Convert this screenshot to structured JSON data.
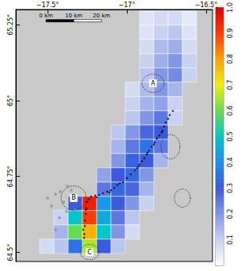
{
  "chart_data": {
    "type": "heatmap_map",
    "xlim": [
      -17.7,
      -16.46
    ],
    "ylim": [
      64.47,
      65.3
    ],
    "xticks": [
      {
        "value": -17.5,
        "label": "−17.5°"
      },
      {
        "value": -17,
        "label": "−17°"
      },
      {
        "value": -16.5,
        "label": "−16.5°"
      }
    ],
    "yticks": [
      {
        "value": 64.5,
        "label": "64.5°"
      },
      {
        "value": 64.75,
        "label": "64.75°"
      },
      {
        "value": 65,
        "label": "65°"
      },
      {
        "value": 65.25,
        "label": "65.25°"
      }
    ],
    "cell_size": [
      0.09,
      0.047
    ],
    "cells": [
      [
        -16.875,
        65.272,
        0.06
      ],
      [
        -16.785,
        65.272,
        0.08
      ],
      [
        -16.695,
        65.272,
        0.08
      ],
      [
        -16.605,
        65.272,
        0.05
      ],
      [
        -16.875,
        65.225,
        0.06
      ],
      [
        -16.785,
        65.225,
        0.1
      ],
      [
        -16.695,
        65.225,
        0.12
      ],
      [
        -16.605,
        65.225,
        0.06
      ],
      [
        -16.875,
        65.178,
        0.08
      ],
      [
        -16.785,
        65.178,
        0.14
      ],
      [
        -16.695,
        65.178,
        0.16
      ],
      [
        -16.605,
        65.178,
        0.08
      ],
      [
        -16.875,
        65.131,
        0.1
      ],
      [
        -16.785,
        65.131,
        0.16
      ],
      [
        -16.695,
        65.131,
        0.2
      ],
      [
        -16.605,
        65.131,
        0.1
      ],
      [
        -16.875,
        65.084,
        0.12
      ],
      [
        -16.785,
        65.084,
        0.2
      ],
      [
        -16.695,
        65.084,
        0.22
      ],
      [
        -16.605,
        65.084,
        0.1
      ],
      [
        -16.965,
        65.037,
        0.08
      ],
      [
        -16.875,
        65.037,
        0.14
      ],
      [
        -16.785,
        65.037,
        0.2
      ],
      [
        -16.695,
        65.037,
        0.15
      ],
      [
        -16.965,
        64.99,
        0.1
      ],
      [
        -16.875,
        64.99,
        0.15
      ],
      [
        -16.785,
        64.99,
        0.18
      ],
      [
        -16.695,
        64.99,
        0.1
      ],
      [
        -16.965,
        64.943,
        0.12
      ],
      [
        -16.875,
        64.943,
        0.2
      ],
      [
        -16.785,
        64.943,
        0.25
      ],
      [
        -16.695,
        64.943,
        0.1
      ],
      [
        -17.055,
        64.896,
        0.12
      ],
      [
        -16.965,
        64.896,
        0.2
      ],
      [
        -16.875,
        64.896,
        0.28
      ],
      [
        -16.785,
        64.896,
        0.3
      ],
      [
        -17.055,
        64.849,
        0.15
      ],
      [
        -16.965,
        64.849,
        0.25
      ],
      [
        -16.875,
        64.849,
        0.35
      ],
      [
        -16.785,
        64.849,
        0.25
      ],
      [
        -17.055,
        64.802,
        0.2
      ],
      [
        -16.965,
        64.802,
        0.32
      ],
      [
        -16.875,
        64.802,
        0.3
      ],
      [
        -16.785,
        64.802,
        0.15
      ],
      [
        -17.145,
        64.755,
        0.18
      ],
      [
        -17.055,
        64.755,
        0.3
      ],
      [
        -16.965,
        64.755,
        0.33
      ],
      [
        -16.875,
        64.755,
        0.2
      ],
      [
        -17.145,
        64.708,
        0.25
      ],
      [
        -17.055,
        64.708,
        0.33
      ],
      [
        -16.965,
        64.708,
        0.28
      ],
      [
        -16.875,
        64.708,
        0.15
      ],
      [
        -17.325,
        64.661,
        0.3
      ],
      [
        -17.235,
        64.661,
        0.95
      ],
      [
        -17.145,
        64.661,
        0.42
      ],
      [
        -17.055,
        64.661,
        0.3
      ],
      [
        -16.965,
        64.661,
        0.2
      ],
      [
        -16.875,
        64.661,
        0.1
      ],
      [
        -17.415,
        64.614,
        0.1
      ],
      [
        -17.325,
        64.614,
        0.5
      ],
      [
        -17.235,
        64.614,
        0.9
      ],
      [
        -17.145,
        64.614,
        0.45
      ],
      [
        -17.055,
        64.614,
        0.25
      ],
      [
        -16.965,
        64.614,
        0.12
      ],
      [
        -17.415,
        64.567,
        0.15
      ],
      [
        -17.325,
        64.567,
        0.6
      ],
      [
        -17.235,
        64.567,
        0.78
      ],
      [
        -17.145,
        64.567,
        0.5
      ],
      [
        -17.055,
        64.567,
        0.2
      ],
      [
        -16.965,
        64.567,
        0.08
      ],
      [
        -17.505,
        64.52,
        0.08
      ],
      [
        -17.415,
        64.52,
        0.12
      ],
      [
        -17.325,
        64.52,
        0.35
      ],
      [
        -17.235,
        64.52,
        0.65
      ],
      [
        -17.145,
        64.52,
        0.3
      ],
      [
        -17.055,
        64.52,
        0.12
      ]
    ],
    "colorbar": {
      "range": [
        0,
        1
      ],
      "ticks": [
        0.1,
        0.2,
        0.3,
        0.4,
        0.5,
        0.6,
        0.7,
        0.8,
        0.9,
        {
          "value": 1,
          "label": "1.0"
        }
      ]
    },
    "earthquakes": {
      "color": "#000000",
      "points": [
        [
          -17.27,
          64.548
        ],
        [
          -17.268,
          64.56
        ],
        [
          -17.265,
          64.587
        ],
        [
          -17.262,
          64.605
        ],
        [
          -17.26,
          64.627
        ],
        [
          -17.255,
          64.645
        ],
        [
          -17.25,
          64.666
        ],
        [
          -17.24,
          64.675
        ],
        [
          -17.225,
          64.684
        ],
        [
          -17.2,
          64.687
        ],
        [
          -17.175,
          64.689
        ],
        [
          -17.15,
          64.695
        ],
        [
          -17.125,
          64.7
        ],
        [
          -17.1,
          64.705
        ],
        [
          -17.08,
          64.712
        ],
        [
          -17.06,
          64.722
        ],
        [
          -17.045,
          64.727
        ],
        [
          -17.025,
          64.731
        ],
        [
          -17.0,
          64.745
        ],
        [
          -16.975,
          64.757
        ],
        [
          -16.95,
          64.77
        ],
        [
          -16.935,
          64.778
        ],
        [
          -16.925,
          64.783
        ],
        [
          -16.905,
          64.8
        ],
        [
          -16.89,
          64.81
        ],
        [
          -16.875,
          64.822
        ],
        [
          -16.86,
          64.835
        ],
        [
          -16.845,
          64.848
        ],
        [
          -16.825,
          64.862
        ],
        [
          -16.81,
          64.875
        ],
        [
          -16.795,
          64.885
        ],
        [
          -16.775,
          64.901
        ],
        [
          -16.765,
          64.915
        ],
        [
          -16.755,
          64.928
        ],
        [
          -16.74,
          64.94
        ],
        [
          -16.73,
          64.952
        ],
        [
          -16.71,
          64.966
        ],
        [
          -16.92,
          64.79
        ],
        [
          -16.87,
          64.828
        ],
        [
          -16.83,
          64.855
        ],
        [
          -16.78,
          64.895
        ],
        [
          -17.11,
          64.698
        ],
        [
          -17.19,
          64.682
        ],
        [
          -17.275,
          64.575
        ],
        [
          -17.258,
          64.64
        ]
      ]
    },
    "earlier_earthquakes": {
      "color": "#8c8c8c",
      "points": [
        [
          -17.45,
          64.692
        ],
        [
          -17.4,
          64.666
        ],
        [
          -17.475,
          64.653
        ],
        [
          -17.35,
          64.705
        ],
        [
          -17.425,
          64.614
        ],
        [
          -17.325,
          64.64
        ],
        [
          -17.375,
          64.718
        ],
        [
          -17.5,
          64.679
        ],
        [
          -17.3,
          64.601
        ],
        [
          -17.45,
          64.575
        ],
        [
          -17.38,
          64.635
        ],
        [
          -17.42,
          64.7
        ]
      ]
    },
    "calderas": [
      {
        "label": "A",
        "center": [
          -16.835,
          65.057
        ],
        "radius": [
          0.07,
          0.03
        ]
      },
      {
        "label": "B",
        "center": [
          -17.335,
          64.679
        ],
        "radius": [
          0.08,
          0.04
        ]
      },
      {
        "label": "C",
        "center": [
          -17.235,
          64.501
        ],
        "radius": [
          0.06,
          0.025
        ]
      },
      {
        "label": null,
        "center": [
          -16.725,
          64.848
        ],
        "radius": [
          0.06,
          0.04
        ]
      },
      {
        "label": null,
        "center": [
          -16.65,
          64.679
        ],
        "radius": [
          0.05,
          0.03
        ]
      }
    ],
    "scale_bar": {
      "labels": [
        "0 km",
        "10 km",
        "20 km"
      ],
      "lon": [
        -17.51,
        -17.335,
        -17.16
      ],
      "lat": 65.263
    }
  }
}
